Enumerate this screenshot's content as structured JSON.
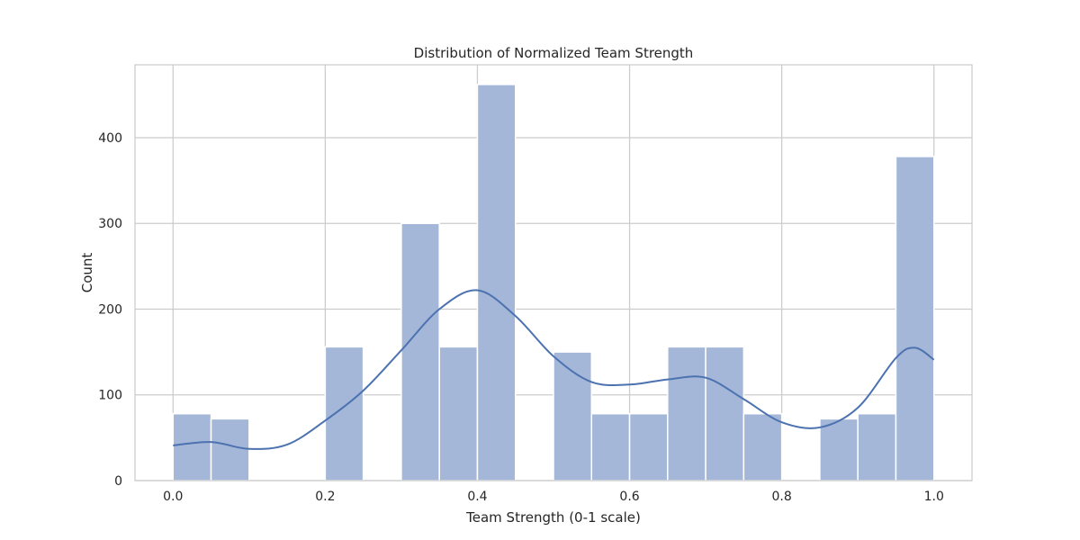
{
  "chart_data": {
    "type": "bar",
    "title": "Distribution of Normalized Team Strength",
    "xlabel": "Team Strength (0-1 scale)",
    "ylabel": "Count",
    "xlim": [
      -0.05,
      1.05
    ],
    "ylim": [
      0,
      485
    ],
    "x_ticks": [
      0.0,
      0.2,
      0.4,
      0.6,
      0.8,
      1.0
    ],
    "x_tick_labels": [
      "0.0",
      "0.2",
      "0.4",
      "0.6",
      "0.8",
      "1.0"
    ],
    "y_ticks": [
      0,
      100,
      200,
      300,
      400
    ],
    "y_tick_labels": [
      "0",
      "100",
      "200",
      "300",
      "400"
    ],
    "grid": true,
    "bins": [
      {
        "x0": 0.0,
        "x1": 0.05,
        "count": 78
      },
      {
        "x0": 0.05,
        "x1": 0.1,
        "count": 72
      },
      {
        "x0": 0.1,
        "x1": 0.15,
        "count": 0
      },
      {
        "x0": 0.15,
        "x1": 0.2,
        "count": 0
      },
      {
        "x0": 0.2,
        "x1": 0.25,
        "count": 156
      },
      {
        "x0": 0.25,
        "x1": 0.3,
        "count": 0
      },
      {
        "x0": 0.3,
        "x1": 0.35,
        "count": 300
      },
      {
        "x0": 0.35,
        "x1": 0.4,
        "count": 156
      },
      {
        "x0": 0.4,
        "x1": 0.45,
        "count": 462
      },
      {
        "x0": 0.45,
        "x1": 0.5,
        "count": 0
      },
      {
        "x0": 0.5,
        "x1": 0.55,
        "count": 150
      },
      {
        "x0": 0.55,
        "x1": 0.6,
        "count": 78
      },
      {
        "x0": 0.6,
        "x1": 0.65,
        "count": 78
      },
      {
        "x0": 0.65,
        "x1": 0.7,
        "count": 156
      },
      {
        "x0": 0.7,
        "x1": 0.75,
        "count": 156
      },
      {
        "x0": 0.75,
        "x1": 0.8,
        "count": 78
      },
      {
        "x0": 0.8,
        "x1": 0.85,
        "count": 0
      },
      {
        "x0": 0.85,
        "x1": 0.9,
        "count": 72
      },
      {
        "x0": 0.9,
        "x1": 0.95,
        "count": 78
      },
      {
        "x0": 0.95,
        "x1": 1.0,
        "count": 378
      }
    ],
    "kde": {
      "x": [
        0.0,
        0.05,
        0.1,
        0.15,
        0.2,
        0.25,
        0.3,
        0.35,
        0.4,
        0.45,
        0.5,
        0.55,
        0.6,
        0.65,
        0.7,
        0.75,
        0.8,
        0.85,
        0.9,
        0.95,
        0.975,
        1.0
      ],
      "y": [
        41,
        45,
        37,
        42,
        70,
        105,
        152,
        200,
        222,
        192,
        145,
        115,
        112,
        118,
        120,
        95,
        68,
        62,
        85,
        143,
        155,
        141
      ]
    },
    "colors": {
      "bar_fill": "#a4b7d8",
      "bar_edge": "#ffffff",
      "kde_line": "#4c72b0",
      "grid": "#cccccc",
      "spine": "#cccccc"
    }
  }
}
